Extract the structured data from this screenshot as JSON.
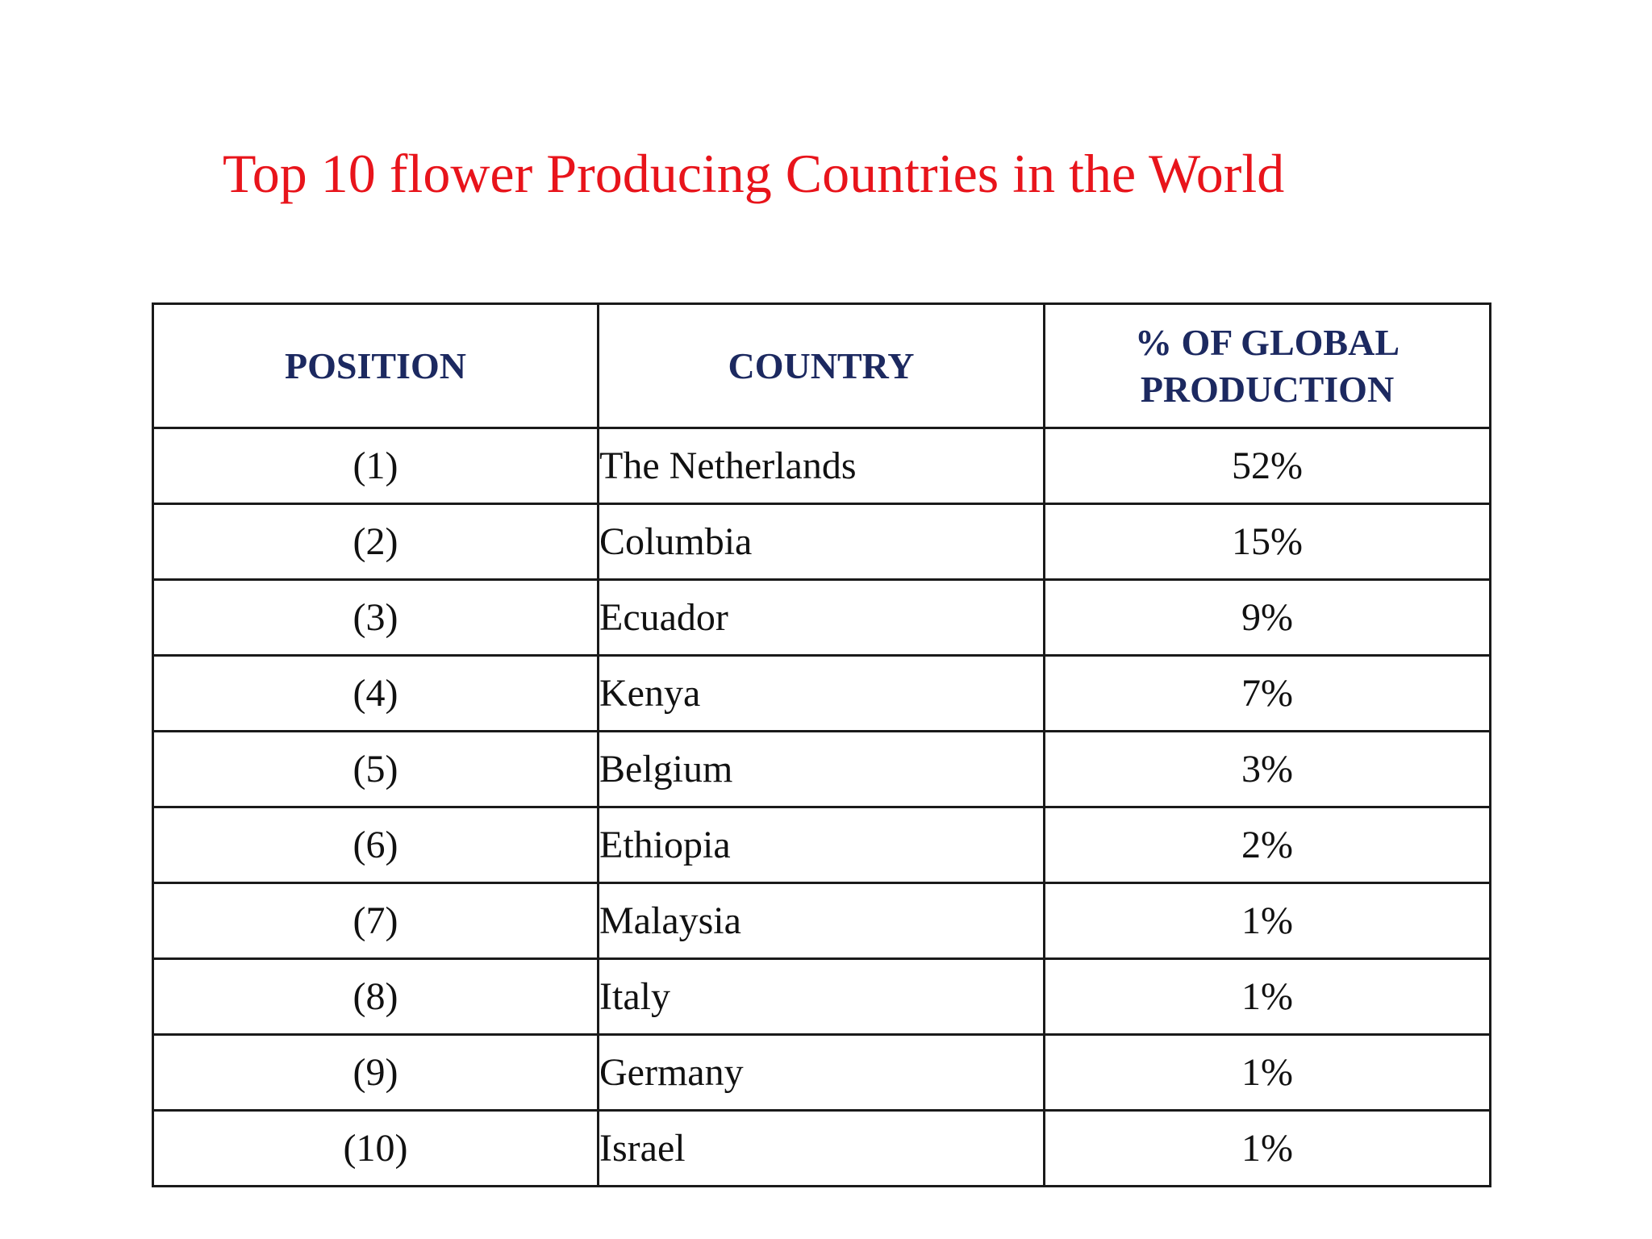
{
  "title": "Top 10 flower Producing Countries in the World",
  "table": {
    "headers": {
      "position": "POSITION",
      "country": "COUNTRY",
      "share_line1": "% OF GLOBAL",
      "share_line2": "PRODUCTION"
    },
    "rows": [
      {
        "position": "(1)",
        "country": "The Netherlands",
        "share": "52%"
      },
      {
        "position": "(2)",
        "country": "Columbia",
        "share": "15%"
      },
      {
        "position": "(3)",
        "country": "Ecuador",
        "share": "9%"
      },
      {
        "position": "(4)",
        "country": "Kenya",
        "share": "7%"
      },
      {
        "position": "(5)",
        "country": "Belgium",
        "share": "3%"
      },
      {
        "position": "(6)",
        "country": "Ethiopia",
        "share": "2%"
      },
      {
        "position": "(7)",
        "country": "Malaysia",
        "share": "1%"
      },
      {
        "position": "(8)",
        "country": "Italy",
        "share": "1%"
      },
      {
        "position": "(9)",
        "country": "Germany",
        "share": "1%"
      },
      {
        "position": "(10)",
        "country": "Israel",
        "share": "1%"
      }
    ]
  },
  "colors": {
    "title": "#e8141b",
    "header_text": "#1c2960",
    "body_text": "#111111",
    "grid": "#1a1a1a"
  }
}
